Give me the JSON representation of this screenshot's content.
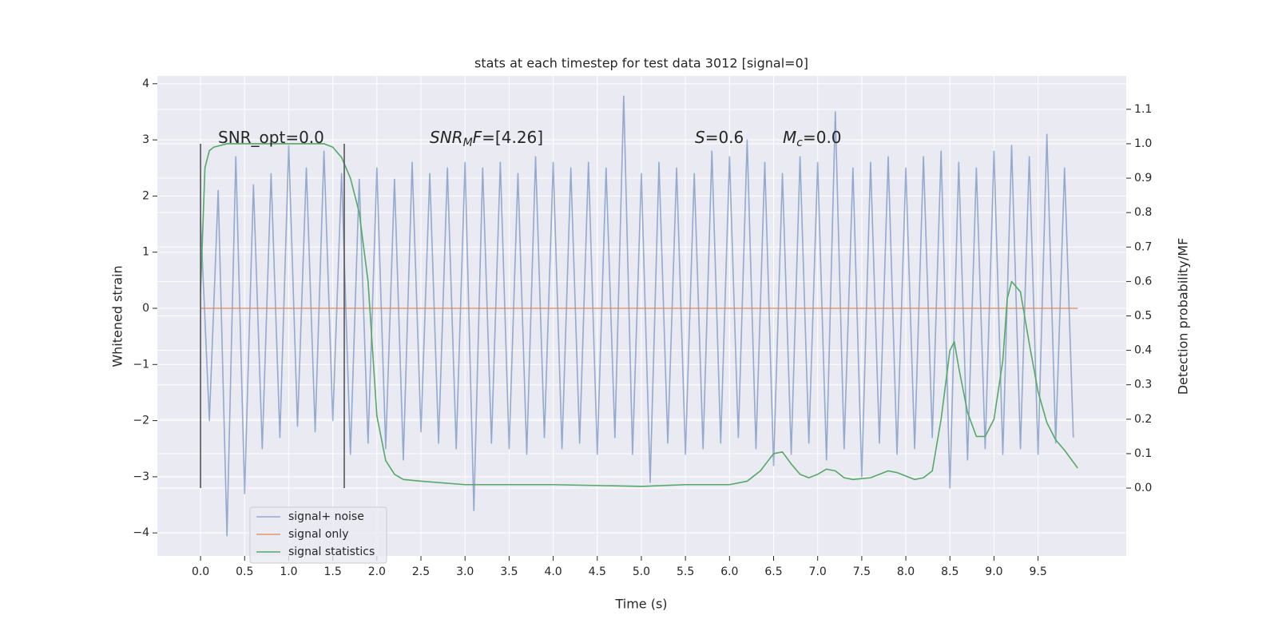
{
  "chart_data": {
    "type": "line",
    "title": "stats at each timestep for test data 3012 [signal=0]",
    "xlabel": "Time (s)",
    "ylabel": "Whitened strain",
    "y2label": "Detection probability/MF",
    "xlim": [
      -0.49,
      10.5
    ],
    "ylim": [
      -4.41,
      4.14
    ],
    "y2lim": [
      -0.197,
      1.197
    ],
    "xticks": [
      {
        "value": 0,
        "label": "0.0"
      },
      {
        "value": 0.5,
        "label": "0.5"
      },
      {
        "value": 1,
        "label": "1.0"
      },
      {
        "value": 1.5,
        "label": "1.5"
      },
      {
        "value": 2,
        "label": "2.0"
      },
      {
        "value": 2.5,
        "label": "2.5"
      },
      {
        "value": 3,
        "label": "3.0"
      },
      {
        "value": 3.5,
        "label": "3.5"
      },
      {
        "value": 4,
        "label": "4.0"
      },
      {
        "value": 4.5,
        "label": "4.5"
      },
      {
        "value": 5,
        "label": "5.0"
      },
      {
        "value": 5.5,
        "label": "5.5"
      },
      {
        "value": 6,
        "label": "6.0"
      },
      {
        "value": 6.5,
        "label": "6.5"
      },
      {
        "value": 7,
        "label": "7.0"
      },
      {
        "value": 7.5,
        "label": "7.5"
      },
      {
        "value": 8,
        "label": "8.0"
      },
      {
        "value": 8.5,
        "label": "8.5"
      },
      {
        "value": 9,
        "label": "9.0"
      },
      {
        "value": 9.5,
        "label": "9.5"
      }
    ],
    "yticks": [
      {
        "value": -4,
        "label": "−4"
      },
      {
        "value": -3,
        "label": "−3"
      },
      {
        "value": -2,
        "label": "−2"
      },
      {
        "value": -1,
        "label": "−1"
      },
      0,
      1,
      2,
      3,
      4
    ],
    "y2ticks": [
      {
        "value": 0,
        "label": "0.0"
      },
      {
        "value": 0.1,
        "label": "0.1"
      },
      {
        "value": 0.2,
        "label": "0.2"
      },
      {
        "value": 0.3,
        "label": "0.3"
      },
      {
        "value": 0.4,
        "label": "0.4"
      },
      {
        "value": 0.5,
        "label": "0.5"
      },
      {
        "value": 0.6,
        "label": "0.6"
      },
      {
        "value": 0.7,
        "label": "0.7"
      },
      {
        "value": 0.8,
        "label": "0.8"
      },
      {
        "value": 0.9,
        "label": "0.9"
      },
      {
        "value": 1,
        "label": "1.0"
      },
      {
        "value": 1.1,
        "label": "1.1"
      }
    ],
    "grid": true,
    "series": [
      {
        "name": "signal+ noise",
        "color": "#4c72b0",
        "opacity": 0.55,
        "x": [
          0,
          0.1,
          0.2,
          0.3,
          0.4,
          0.5,
          0.6,
          0.7,
          0.8,
          0.9,
          1,
          1.1,
          1.2,
          1.3,
          1.4,
          1.5,
          1.6,
          1.7,
          1.8,
          1.9,
          2,
          2.1,
          2.2,
          2.3,
          2.4,
          2.5,
          2.6,
          2.7,
          2.8,
          2.9,
          3,
          3.1,
          3.2,
          3.3,
          3.4,
          3.5,
          3.6,
          3.7,
          3.8,
          3.9,
          4,
          4.1,
          4.2,
          4.3,
          4.4,
          4.5,
          4.6,
          4.7,
          4.8,
          4.9,
          5,
          5.1,
          5.2,
          5.3,
          5.4,
          5.5,
          5.6,
          5.7,
          5.8,
          5.9,
          6,
          6.1,
          6.2,
          6.3,
          6.4,
          6.5,
          6.6,
          6.7,
          6.8,
          6.9,
          7,
          7.1,
          7.2,
          7.3,
          7.4,
          7.5,
          7.6,
          7.7,
          7.8,
          7.9,
          8,
          8.1,
          8.2,
          8.3,
          8.4,
          8.5,
          8.6,
          8.7,
          8.8,
          8.9,
          9,
          9.1,
          9.2,
          9.3,
          9.4,
          9.5,
          9.6,
          9.7,
          9.8,
          9.9
        ],
        "values": [
          1.6,
          -2.0,
          2.1,
          -4.05,
          2.7,
          -3.3,
          2.2,
          -2.5,
          2.4,
          -2.3,
          2.9,
          -2.1,
          2.5,
          -2.2,
          2.8,
          -2.0,
          2.4,
          -2.6,
          2.3,
          -2.4,
          2.5,
          -2.5,
          2.3,
          -2.7,
          2.6,
          -2.2,
          2.4,
          -2.4,
          2.5,
          -2.5,
          2.6,
          -3.6,
          2.5,
          -2.4,
          2.6,
          -2.5,
          2.4,
          -2.6,
          2.7,
          -2.3,
          2.6,
          -2.5,
          2.5,
          -2.4,
          2.6,
          -2.6,
          2.5,
          -2.3,
          3.78,
          -2.6,
          2.4,
          -3.1,
          2.6,
          -2.4,
          2.5,
          -2.6,
          2.4,
          -2.5,
          2.8,
          -2.4,
          2.7,
          -2.3,
          3.0,
          -2.5,
          2.6,
          -2.8,
          2.4,
          -2.6,
          2.7,
          -2.4,
          2.6,
          -2.7,
          3.5,
          -2.5,
          2.5,
          -3.0,
          2.6,
          -2.4,
          2.7,
          -2.6,
          2.5,
          -2.5,
          2.7,
          -2.3,
          2.8,
          -3.2,
          2.6,
          -2.7,
          2.5,
          -2.5,
          2.8,
          -2.6,
          2.9,
          -2.5,
          2.7,
          -2.6,
          3.1,
          -2.4,
          2.5,
          -2.3
        ]
      },
      {
        "name": "signal only",
        "color": "#dd8452",
        "opacity": 0.8,
        "x": [
          0,
          9.95
        ],
        "values": [
          0,
          0
        ]
      },
      {
        "name": "signal statistics",
        "color": "#55a868",
        "opacity": 1,
        "axis": "y2",
        "x": [
          0,
          0.05,
          0.1,
          0.15,
          0.3,
          0.6,
          1.0,
          1.4,
          1.5,
          1.6,
          1.7,
          1.8,
          1.9,
          2.0,
          2.1,
          2.2,
          2.3,
          2.5,
          3.0,
          4.0,
          5.0,
          5.5,
          6.0,
          6.2,
          6.35,
          6.5,
          6.6,
          6.7,
          6.8,
          6.9,
          7.0,
          7.1,
          7.2,
          7.3,
          7.4,
          7.6,
          7.8,
          7.9,
          8.0,
          8.1,
          8.2,
          8.3,
          8.4,
          8.5,
          8.55,
          8.6,
          8.7,
          8.8,
          8.9,
          9.0,
          9.1,
          9.15,
          9.2,
          9.3,
          9.4,
          9.5,
          9.6,
          9.7,
          9.8,
          9.95
        ],
        "values": [
          0.57,
          0.93,
          0.98,
          0.99,
          1.0,
          1.0,
          1.0,
          1.0,
          0.99,
          0.96,
          0.9,
          0.8,
          0.6,
          0.21,
          0.08,
          0.04,
          0.025,
          0.02,
          0.01,
          0.01,
          0.005,
          0.01,
          0.01,
          0.02,
          0.05,
          0.1,
          0.105,
          0.07,
          0.04,
          0.03,
          0.04,
          0.055,
          0.05,
          0.03,
          0.025,
          0.03,
          0.05,
          0.045,
          0.035,
          0.025,
          0.03,
          0.05,
          0.2,
          0.4,
          0.425,
          0.35,
          0.22,
          0.15,
          0.15,
          0.2,
          0.37,
          0.55,
          0.6,
          0.57,
          0.42,
          0.28,
          0.19,
          0.14,
          0.11,
          0.058
        ]
      }
    ],
    "vlines": [
      0,
      1.63
    ],
    "annotations": [
      {
        "parts": [
          {
            "text": "SNR_opt=0.0"
          }
        ]
      },
      {
        "parts": [
          {
            "text": "SNR",
            "italic": true
          },
          {
            "text": "M",
            "italic": true,
            "sub": true
          },
          {
            "text": "F",
            "italic": true
          },
          {
            "text": "=[4.26]"
          }
        ]
      },
      {
        "parts": [
          {
            "text": "S",
            "italic": true
          },
          {
            "text": "=0.6"
          }
        ]
      },
      {
        "parts": [
          {
            "text": "M",
            "italic": true
          },
          {
            "text": "c",
            "italic": true,
            "sub": true
          },
          {
            "text": "=0.0"
          }
        ]
      }
    ]
  }
}
